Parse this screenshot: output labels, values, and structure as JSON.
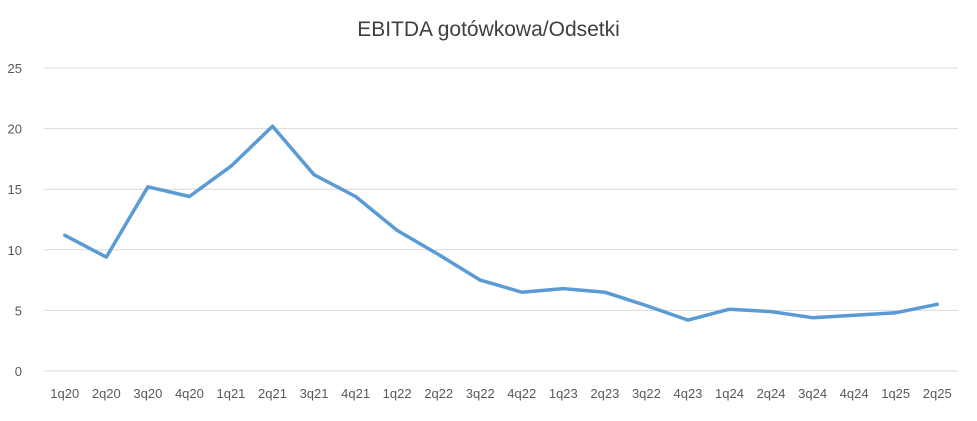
{
  "chart_data": {
    "type": "line",
    "title": "EBITDA gotówkowa/Odsetki",
    "xlabel": "",
    "ylabel": "",
    "categories": [
      "1q20",
      "2q20",
      "3q20",
      "4q20",
      "1q21",
      "2q21",
      "3q21",
      "4q21",
      "1q22",
      "2q22",
      "3q22",
      "4q22",
      "1q23",
      "2q23",
      "3q22",
      "4q23",
      "1q24",
      "2q24",
      "3q24",
      "4q24",
      "1q25",
      "2q25"
    ],
    "series": [
      {
        "values": [
          11.2,
          9.4,
          15.2,
          14.4,
          16.9,
          20.2,
          16.2,
          14.4,
          11.6,
          9.6,
          7.5,
          6.5,
          6.8,
          6.5,
          5.4,
          4.2,
          5.1,
          4.9,
          4.4,
          4.6,
          4.8,
          5.5
        ]
      }
    ],
    "ylim": [
      0,
      25
    ],
    "yticks": [
      "0",
      "5",
      "10",
      "15",
      "20",
      "25"
    ],
    "grid": true,
    "legend": "none",
    "colors": {
      "line": "#5b9bd5",
      "grid": "#d9d9d9",
      "axis": "#d9d9d9",
      "tick_text": "#595959"
    }
  }
}
